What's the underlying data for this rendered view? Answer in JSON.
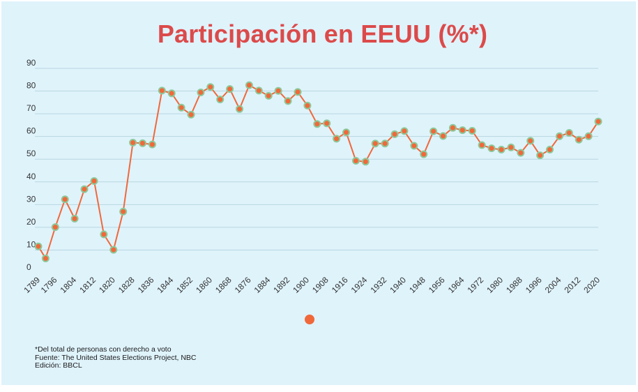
{
  "title": "Participación en EEUU (%*)",
  "footer": {
    "note": "*Del total de personas con derecho a voto",
    "source": "Fuente: The United States Elections Project, NBC",
    "edition": "Edición: BBCL"
  },
  "colors": {
    "background": "#dff3fb",
    "title": "#dc4a4a",
    "line": "#f0683a",
    "marker_fill": "#f0683a",
    "marker_stroke": "#8cc99a",
    "grid": "#b9d6e0"
  },
  "chart_data": {
    "type": "line",
    "title": "Participación en EEUU (%*)",
    "xlabel": "",
    "ylabel": "",
    "ylim": [
      0,
      90
    ],
    "yticks": [
      0,
      10,
      20,
      30,
      40,
      50,
      60,
      70,
      80,
      90
    ],
    "xtick_labels": [
      "1789",
      "1796",
      "1804",
      "1812",
      "1820",
      "1828",
      "1836",
      "1844",
      "1852",
      "1860",
      "1868",
      "1876",
      "1884",
      "1892",
      "1900",
      "1908",
      "1916",
      "1924",
      "1932",
      "1940",
      "1948",
      "1956",
      "1964",
      "1972",
      "1980",
      "1988",
      "1996",
      "2004",
      "2012",
      "2020"
    ],
    "grid": true,
    "legend": "bottom-center",
    "series": [
      {
        "x": [
          "1789",
          "1792",
          "1796",
          "1800",
          "1804",
          "1808",
          "1812",
          "1816",
          "1820",
          "1824",
          "1828",
          "1832",
          "1836",
          "1840",
          "1844",
          "1848",
          "1852",
          "1856",
          "1860",
          "1864",
          "1868",
          "1872",
          "1876",
          "1880",
          "1884",
          "1888",
          "1892",
          "1896",
          "1900",
          "1904",
          "1908",
          "1912",
          "1916",
          "1920",
          "1924",
          "1928",
          "1932",
          "1936",
          "1940",
          "1944",
          "1948",
          "1952",
          "1956",
          "1960",
          "1964",
          "1968",
          "1972",
          "1976",
          "1980",
          "1984",
          "1988",
          "1992",
          "1996",
          "2000",
          "2004",
          "2008",
          "2012",
          "2016",
          "2020"
        ],
        "values": [
          11.6,
          6.3,
          20.1,
          32.3,
          23.8,
          36.8,
          40.4,
          16.9,
          10.1,
          26.9,
          57.3,
          57.0,
          56.5,
          80.2,
          79.0,
          72.7,
          69.6,
          79.4,
          81.8,
          76.3,
          80.9,
          72.1,
          82.6,
          80.2,
          77.9,
          80.1,
          75.6,
          79.6,
          73.6,
          65.5,
          65.8,
          59.0,
          61.8,
          49.3,
          48.9,
          56.9,
          56.9,
          61.0,
          62.4,
          55.9,
          52.2,
          62.3,
          60.2,
          63.8,
          62.8,
          62.5,
          56.2,
          54.8,
          54.2,
          55.2,
          52.8,
          58.1,
          51.7,
          54.2,
          60.1,
          61.6,
          58.6,
          60.1,
          66.6
        ]
      }
    ]
  }
}
